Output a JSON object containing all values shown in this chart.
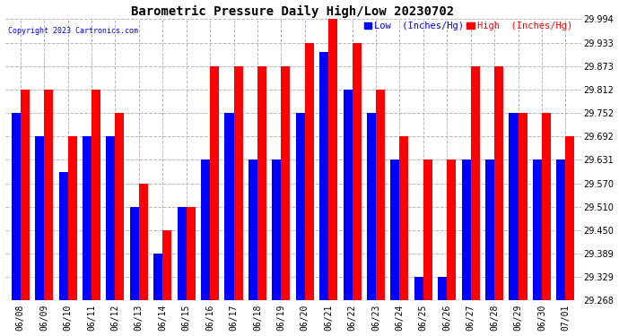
{
  "title": "Barometric Pressure Daily High/Low 20230702",
  "copyright": "Copyright 2023 Cartronics.com",
  "legend_low": "Low  (Inches/Hg)",
  "legend_high": "High  (Inches/Hg)",
  "dates": [
    "06/08",
    "06/09",
    "06/10",
    "06/11",
    "06/12",
    "06/13",
    "06/14",
    "06/15",
    "06/16",
    "06/17",
    "06/18",
    "06/19",
    "06/20",
    "06/21",
    "06/22",
    "06/23",
    "06/24",
    "06/25",
    "06/26",
    "06/27",
    "06/28",
    "06/29",
    "06/30",
    "07/01"
  ],
  "low": [
    29.752,
    29.692,
    29.6,
    29.692,
    29.692,
    29.51,
    29.389,
    29.51,
    29.631,
    29.752,
    29.631,
    29.631,
    29.752,
    29.91,
    29.812,
    29.752,
    29.631,
    29.329,
    29.329,
    29.631,
    29.631,
    29.752,
    29.631,
    29.631
  ],
  "high": [
    29.812,
    29.812,
    29.692,
    29.812,
    29.752,
    29.57,
    29.45,
    29.51,
    29.873,
    29.873,
    29.873,
    29.873,
    29.933,
    29.994,
    29.933,
    29.812,
    29.692,
    29.631,
    29.631,
    29.873,
    29.873,
    29.752,
    29.752,
    29.692
  ],
  "ymin": 29.268,
  "ymax": 29.994,
  "yticks": [
    29.268,
    29.329,
    29.389,
    29.45,
    29.51,
    29.57,
    29.631,
    29.692,
    29.752,
    29.812,
    29.873,
    29.933,
    29.994
  ],
  "bar_width": 0.38,
  "low_color": "#0000ff",
  "high_color": "#ff0000",
  "background_color": "#ffffff",
  "grid_color": "#b0b0b0",
  "title_fontsize": 10,
  "tick_fontsize": 7,
  "legend_fontsize": 7.5,
  "copyright_fontsize": 6
}
